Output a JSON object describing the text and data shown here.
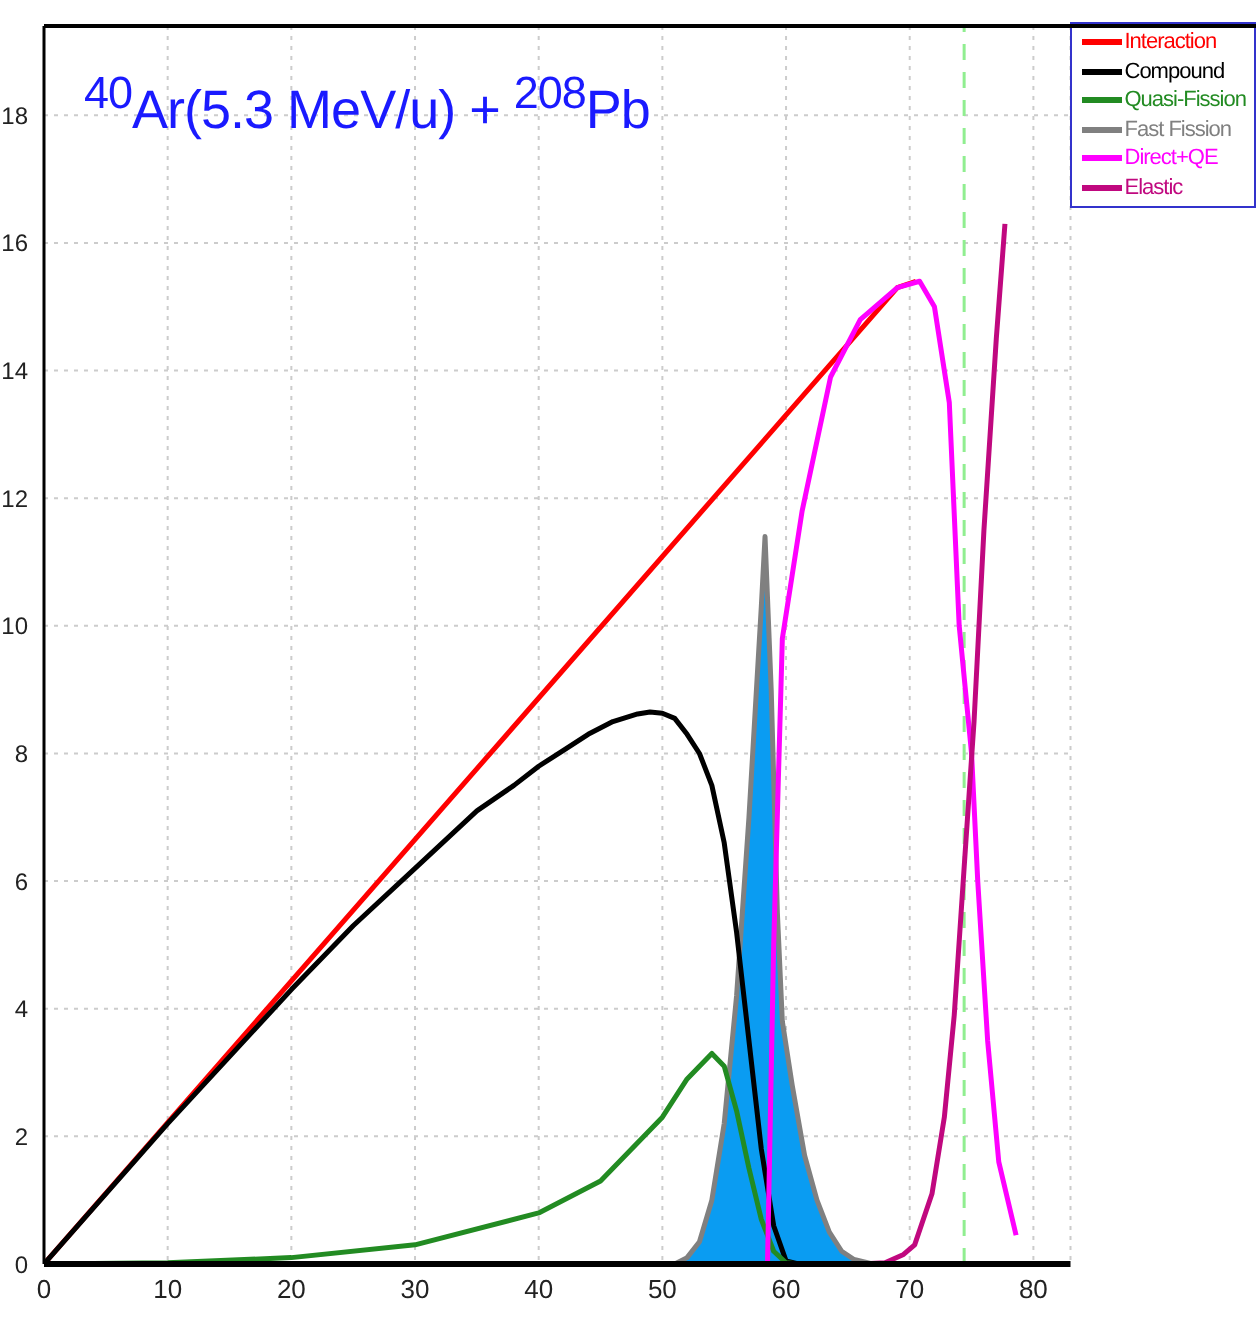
{
  "chart_data": {
    "type": "line",
    "title": "$^{40}$Ar(5.3 MeV/u) + $^{208}$Pb",
    "xlim": [
      0,
      83
    ],
    "xticks": [
      0,
      10,
      20,
      30,
      40,
      50,
      60,
      70,
      80
    ],
    "ylim": [
      0,
      19.4
    ],
    "yticks": [
      0,
      2,
      4,
      6,
      8,
      10,
      12,
      14,
      16,
      18
    ],
    "grid": true,
    "legend": "top right",
    "marker": "none",
    "line_style": "solid",
    "ref_lines": [
      {
        "axis": "x",
        "value": 74.4,
        "color": "#90ee90",
        "line_style": "dashed"
      }
    ],
    "series": [
      {
        "name": "Interaction",
        "color": "#ff0000",
        "x": [
          0,
          69,
          70.5
        ],
        "values": [
          0,
          15.3,
          15.4
        ]
      },
      {
        "name": "Compound",
        "color": "#000000",
        "x": [
          0,
          10,
          20,
          25,
          30,
          35,
          38,
          40,
          42,
          44,
          46,
          48,
          49,
          50,
          51,
          52,
          53,
          54,
          55,
          56,
          57,
          58,
          59,
          60,
          61
        ],
        "values": [
          0,
          2.2,
          4.3,
          5.3,
          6.2,
          7.1,
          7.5,
          7.8,
          8.05,
          8.3,
          8.5,
          8.62,
          8.65,
          8.63,
          8.55,
          8.3,
          8,
          7.5,
          6.6,
          5.2,
          3.5,
          1.8,
          0.6,
          0.05,
          0
        ]
      },
      {
        "name": "Quasi-Fission",
        "color": "#228b22",
        "x": [
          0,
          10,
          20,
          30,
          40,
          45,
          50,
          52,
          54,
          55,
          56,
          57,
          58,
          59,
          60,
          61
        ],
        "values": [
          0,
          0.02,
          0.1,
          0.3,
          0.8,
          1.3,
          2.3,
          2.9,
          3.3,
          3.1,
          2.4,
          1.5,
          0.7,
          0.2,
          0.02,
          0
        ]
      },
      {
        "name": "Fast Fission",
        "type": "area",
        "color": "#808080",
        "x": [
          51,
          52,
          53,
          54,
          55,
          56,
          57,
          58,
          58.3,
          58.8,
          59.3,
          59.7,
          60.5,
          61.5,
          62.5,
          63.5,
          64.5,
          65.5,
          67
        ],
        "values": [
          0,
          0.1,
          0.35,
          1,
          2.2,
          4.2,
          7,
          10.3,
          11.4,
          9,
          5.5,
          3.8,
          2.8,
          1.7,
          1,
          0.5,
          0.2,
          0.07,
          0
        ]
      },
      {
        "name": "Direct+QE",
        "color": "#ff00ff",
        "x": [
          58.5,
          59,
          59.7,
          61.3,
          63.6,
          66,
          69,
          70.8,
          72,
          73.2,
          74,
          75,
          75.5,
          76.3,
          77.2,
          78.6
        ],
        "values": [
          0,
          5,
          9.8,
          11.8,
          13.9,
          14.8,
          15.3,
          15.4,
          15,
          13.5,
          10,
          8,
          6,
          3.5,
          1.6,
          0.45
        ]
      },
      {
        "name": "Elastic",
        "color": "#c0087f",
        "x": [
          66,
          68,
          69.5,
          70.4,
          71.8,
          72.8,
          73.6,
          74.5,
          75.2,
          76,
          77,
          77.7
        ],
        "values": [
          0,
          0.02,
          0.15,
          0.3,
          1.1,
          2.3,
          3.9,
          6.5,
          8.5,
          11.5,
          14.5,
          16.3
        ]
      }
    ]
  }
}
